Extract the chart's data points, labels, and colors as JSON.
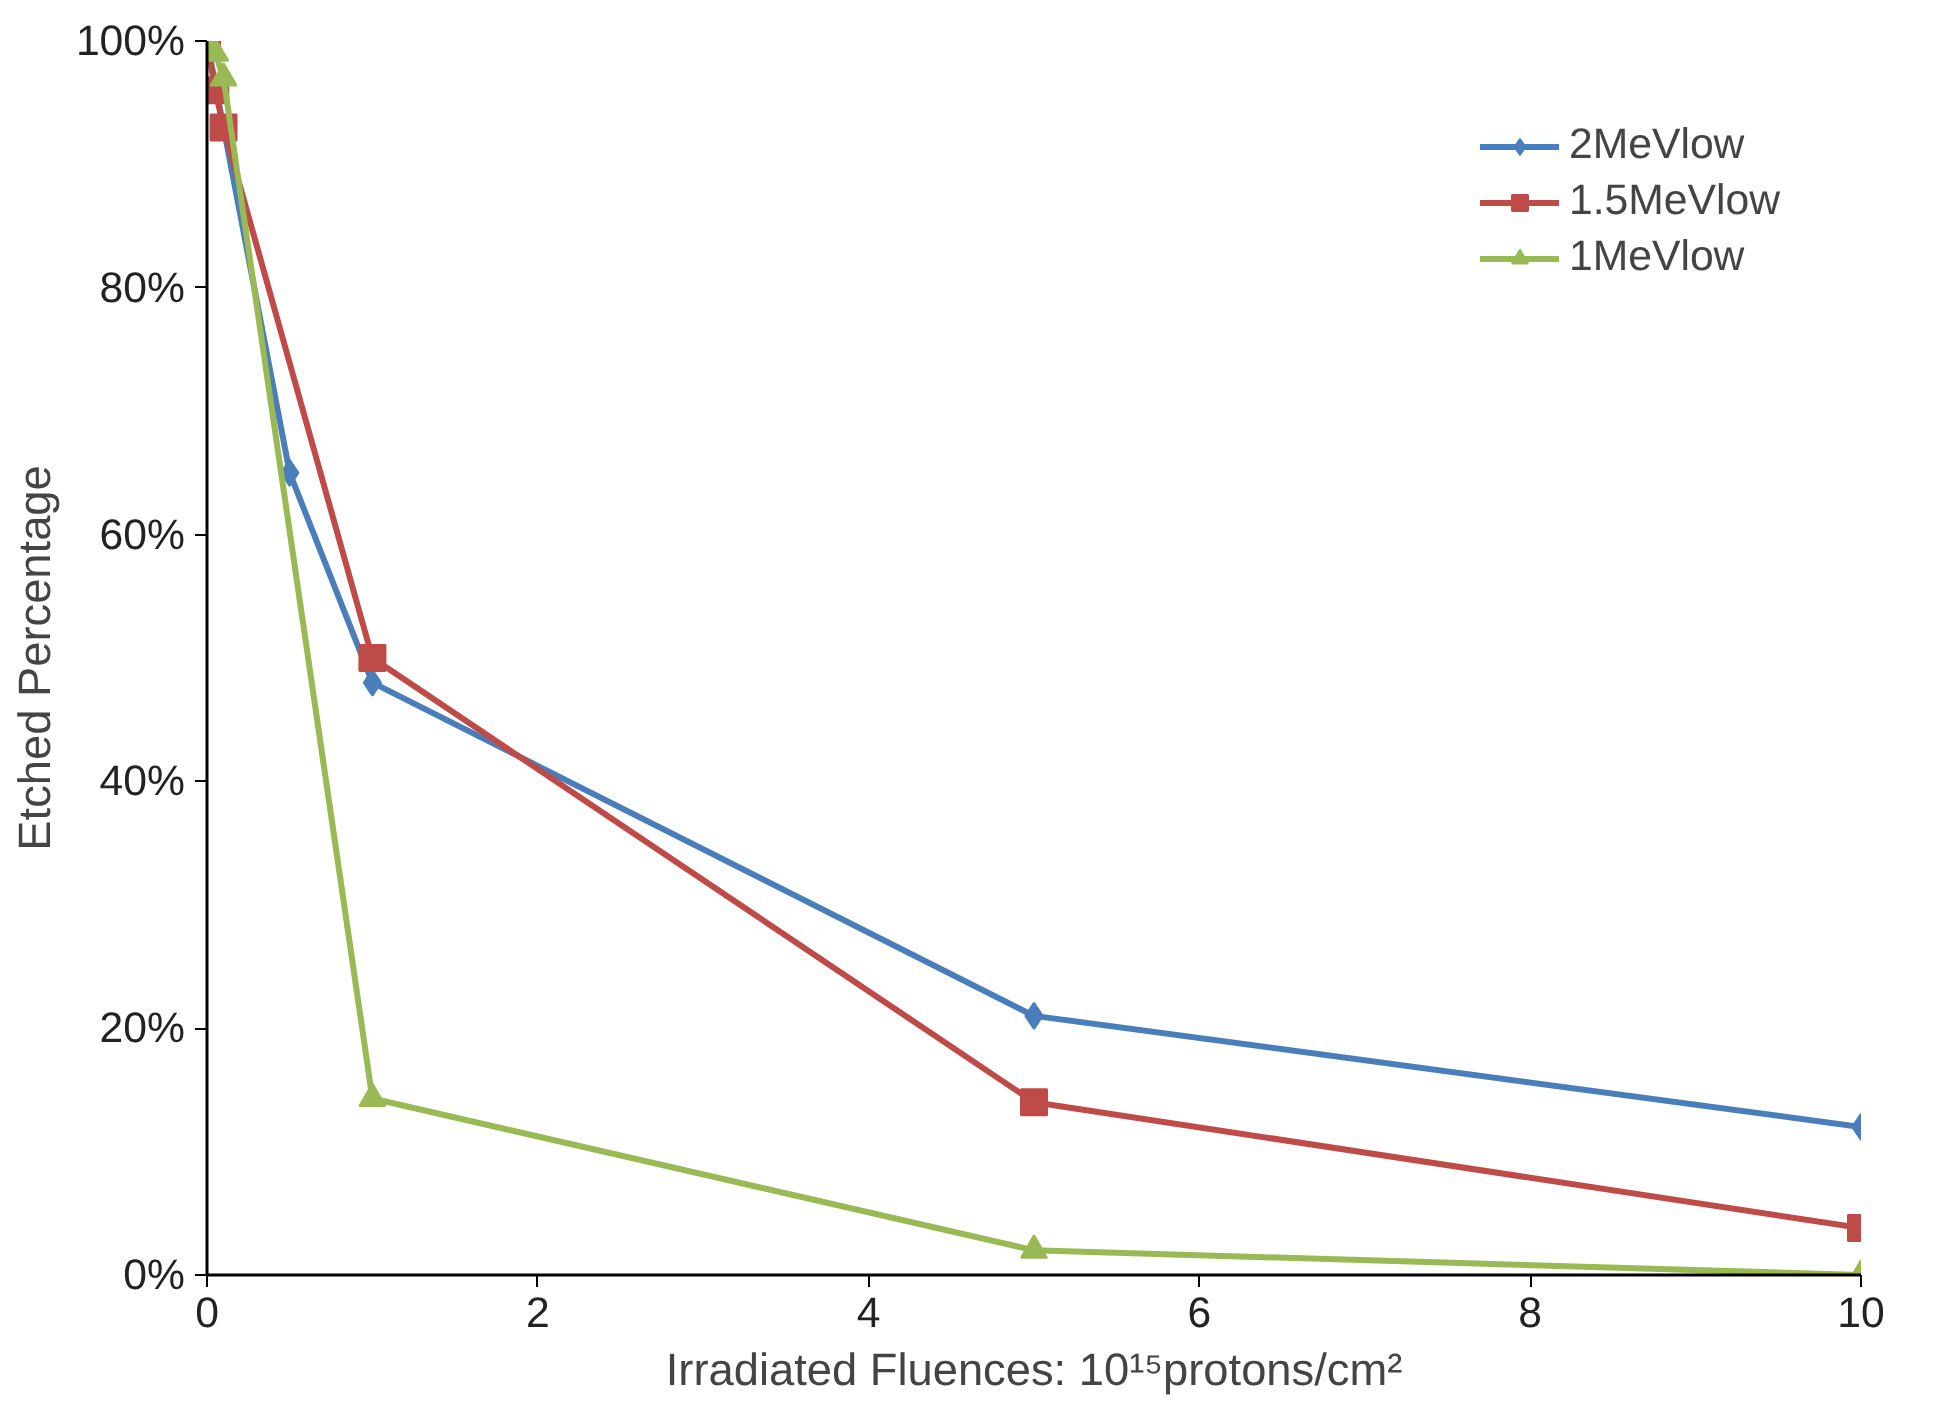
{
  "chart_data": {
    "type": "line",
    "xlabel": "Irradiated Fluences: 10¹⁵protons/cm²",
    "ylabel": "Etched Percentage",
    "xlim": [
      0,
      10
    ],
    "xticks": [
      0,
      2,
      4,
      6,
      8,
      10
    ],
    "ylim": [
      0,
      100
    ],
    "yticks": [
      {
        "value": 0,
        "label": "0%"
      },
      {
        "value": 20,
        "label": "20%"
      },
      {
        "value": 40,
        "label": "40%"
      },
      {
        "value": 60,
        "label": "60%"
      },
      {
        "value": 80,
        "label": "80%"
      },
      {
        "value": 100,
        "label": "100%"
      }
    ],
    "grid": false,
    "legend": "top right",
    "series": [
      {
        "name": "2MeVlow",
        "color": "#4a7ebb",
        "marker": "diamond",
        "x": [
          0,
          0.5,
          1,
          5,
          10
        ],
        "values": [
          100,
          65,
          48,
          21,
          12
        ]
      },
      {
        "name": "1.5MeVlow",
        "color": "#be4b48",
        "marker": "square",
        "x": [
          0,
          0.05,
          0.1,
          1,
          5,
          10
        ],
        "values": [
          100,
          96,
          93,
          50,
          14,
          3.8
        ]
      },
      {
        "name": "1MeVlow",
        "color": "#98b954",
        "marker": "triangle",
        "x": [
          0,
          0.05,
          0.1,
          1,
          5,
          10
        ],
        "values": [
          100,
          99,
          97,
          14.3,
          2,
          0
        ]
      }
    ]
  }
}
